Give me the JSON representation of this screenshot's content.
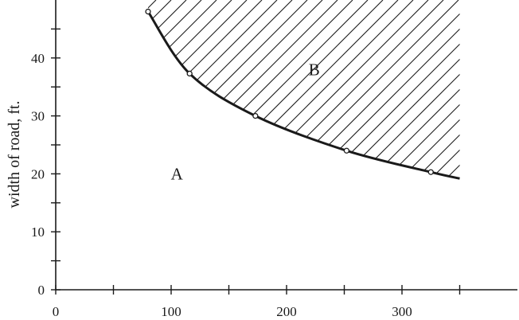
{
  "chart_data": {
    "type": "line",
    "title": "",
    "xlabel": "",
    "ylabel": "width of road, ft.",
    "xlim": [
      0,
      400
    ],
    "ylim": [
      0,
      50
    ],
    "x_ticks": [
      0,
      100,
      200,
      300
    ],
    "x_tick_labels": [
      "0",
      "100",
      "200",
      "300"
    ],
    "x_minor_ticks": [
      50,
      150,
      250,
      350
    ],
    "y_ticks": [
      0,
      10,
      20,
      30,
      40
    ],
    "y_tick_labels": [
      "0",
      "10",
      "20",
      "30",
      "40"
    ],
    "y_minor_ticks": [
      5,
      15,
      25,
      35,
      45
    ],
    "grid": false,
    "series": [
      {
        "points": [
          {
            "x": 80,
            "y": 48
          },
          {
            "x": 116,
            "y": 37.3
          },
          {
            "x": 173,
            "y": 30
          },
          {
            "x": 252,
            "y": 24
          },
          {
            "x": 325,
            "y": 20.3
          }
        ],
        "curve_end": {
          "x": 350,
          "y": 19.2
        },
        "color": "#1a1a1a"
      }
    ],
    "shaded_region": {
      "pattern": "diagonal-hatch",
      "above_curve": true,
      "x_max": 350
    },
    "annotations": [
      {
        "text": "A",
        "x": 105,
        "y": 20
      },
      {
        "text": "B",
        "x": 224,
        "y": 38
      }
    ]
  }
}
